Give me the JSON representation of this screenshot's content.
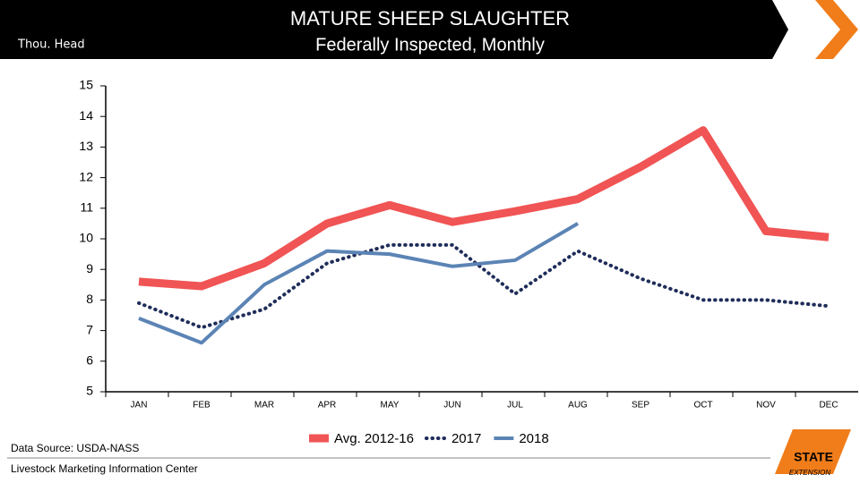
{
  "chart_data": {
    "type": "line",
    "title": "MATURE SHEEP SLAUGHTER",
    "subtitle": "Federally Inspected, Monthly",
    "y_label": "Thou. Head",
    "categories": [
      "JAN",
      "FEB",
      "MAR",
      "APR",
      "MAY",
      "JUN",
      "JUL",
      "AUG",
      "SEP",
      "OCT",
      "NOV",
      "DEC"
    ],
    "series": [
      {
        "name": "Avg. 2012-16",
        "color": "#f05454",
        "values": [
          8.6,
          8.45,
          9.2,
          10.5,
          11.1,
          10.55,
          10.9,
          11.3,
          12.35,
          13.55,
          10.25,
          10.05
        ]
      },
      {
        "name": "2017",
        "color": "#1f2d5a",
        "values": [
          7.9,
          7.1,
          7.7,
          9.2,
          9.8,
          9.8,
          8.2,
          9.6,
          8.7,
          8.0,
          8.0,
          7.8
        ]
      },
      {
        "name": "2018",
        "color": "#5b84b5",
        "values": [
          7.4,
          6.6,
          8.5,
          9.6,
          9.5,
          9.1,
          9.3,
          10.5,
          null,
          null,
          null,
          null
        ]
      }
    ],
    "ylim": [
      5,
      15
    ],
    "yticks": [
      5,
      6,
      7,
      8,
      9,
      10,
      11,
      12,
      13,
      14,
      15
    ],
    "legend": "bottom",
    "source": "Data Source: USDA-NASS",
    "footer": "Livestock Marketing Information Center",
    "logo": [
      "STATE",
      "EXTENSION"
    ]
  }
}
